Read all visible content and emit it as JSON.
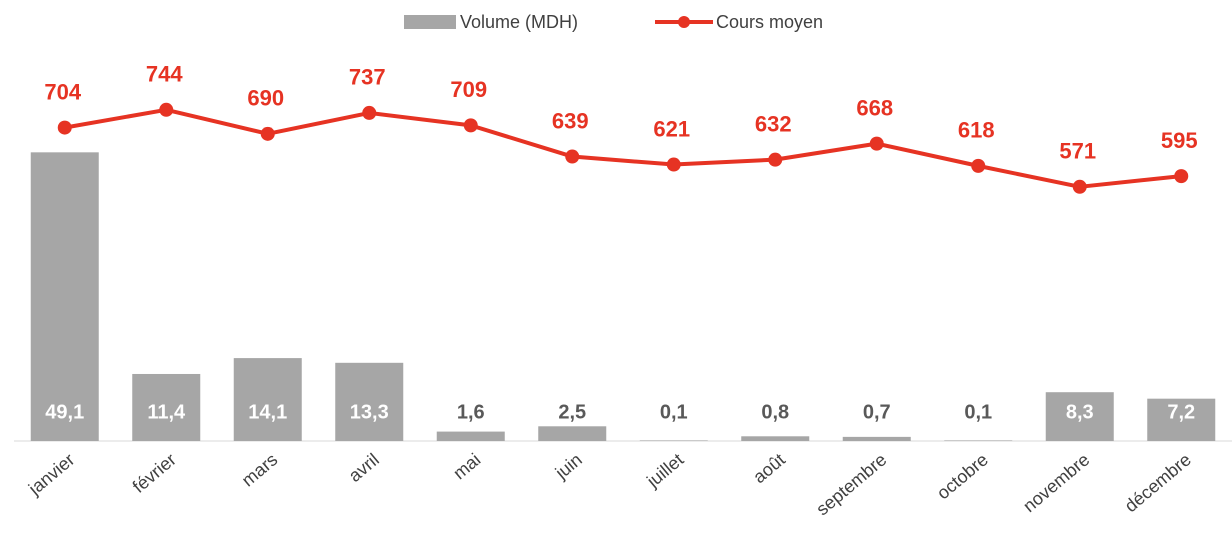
{
  "chart_data": {
    "type": "bar-line",
    "categories": [
      "janvier",
      "février",
      "mars",
      "avril",
      "mai",
      "juin",
      "juillet",
      "août",
      "septembre",
      "octobre",
      "novembre",
      "décembre"
    ],
    "series": [
      {
        "name": "Volume (MDH)",
        "type": "bar",
        "color": "#a6a6a6",
        "values": [
          49.1,
          11.4,
          14.1,
          13.3,
          1.6,
          2.5,
          0.1,
          0.8,
          0.7,
          0.1,
          8.3,
          7.2
        ],
        "value_labels": [
          "49,1",
          "11,4",
          "14,1",
          "13,3",
          "1,6",
          "2,5",
          "0,1",
          "0,8",
          "0,7",
          "0,1",
          "8,3",
          "7,2"
        ]
      },
      {
        "name": "Cours moyen",
        "type": "line",
        "axis": "y2",
        "color": "#e63323",
        "values": [
          704,
          744,
          690,
          737,
          709,
          639,
          621,
          632,
          668,
          618,
          571,
          595
        ]
      }
    ],
    "ylim": [
      0,
      58
    ],
    "y2lim": [
      0,
      766
    ],
    "legend": "top"
  }
}
